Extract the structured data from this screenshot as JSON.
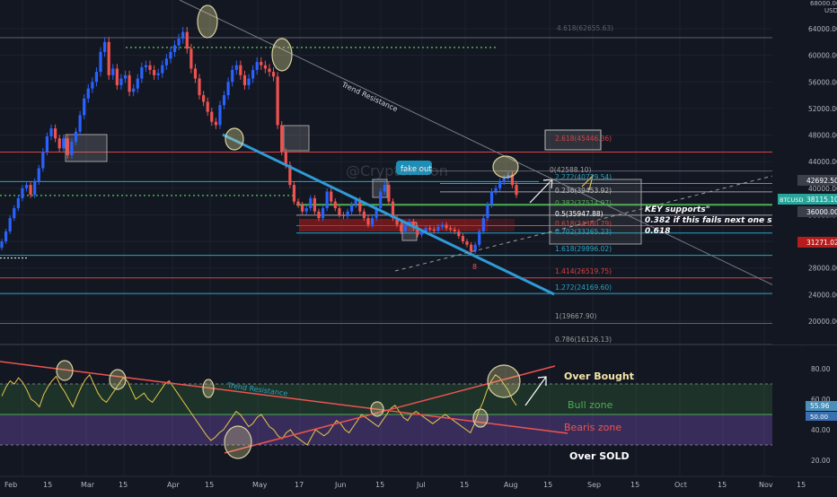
{
  "chart_data": [
    {
      "type": "candlestick",
      "instrument": "BTCUSD",
      "currency": "USD",
      "y_unit_label": "USD",
      "y_scale": "log",
      "ylim": [
        19000,
        68000
      ],
      "price_ticks": [
        64000,
        60000,
        56000,
        52000,
        48000,
        44000,
        40000,
        36000,
        32000,
        28000,
        24000,
        20000
      ],
      "price_tick_labels": [
        "64000.00",
        "60000.00",
        "56000.00",
        "52000.00",
        "48000.00",
        "44000.00",
        "40000.00",
        "36000.00",
        "32000.00",
        "28000.00",
        "24000.00",
        "20000.00"
      ],
      "top_axis_label": "68000.00",
      "price_tags": [
        {
          "value": "42692.50",
          "color": "#3a3f4b"
        },
        {
          "value": "38115.10",
          "label": "BTCUSD",
          "color": "#26a69a"
        },
        {
          "value": "36000.00",
          "color": "#3a3f4b"
        },
        {
          "value": "31271.02",
          "color": "#b71c1c"
        }
      ],
      "close_series": [
        32000,
        33500,
        35500,
        37000,
        38500,
        40000,
        40500,
        39000,
        41000,
        43000,
        45500,
        47800,
        49000,
        47500,
        46000,
        47500,
        45000,
        47000,
        48500,
        51000,
        53500,
        55000,
        56000,
        57500,
        60500,
        62000,
        57000,
        58000,
        55500,
        56500,
        57000,
        54500,
        55000,
        56500,
        58200,
        58500,
        57800,
        57000,
        57300,
        58500,
        59500,
        60500,
        61500,
        62500,
        63500,
        61000,
        58000,
        56500,
        54000,
        53000,
        51500,
        50000,
        49500,
        52500,
        54000,
        56000,
        57800,
        58500,
        57000,
        55500,
        56500,
        57800,
        59000,
        58500,
        58000,
        57500,
        56800,
        49500,
        45500,
        43500,
        40500,
        38000,
        37500,
        36500,
        37000,
        38500,
        36500,
        35500,
        37000,
        39500,
        38000,
        37000,
        36000,
        35800,
        36500,
        37500,
        38200,
        36500,
        35500,
        34500,
        35500,
        37000,
        39500,
        40500,
        38000,
        35500,
        34500,
        33500,
        34500,
        35000,
        34000,
        33000,
        33500,
        34000,
        33800,
        33600,
        34200,
        34500,
        34000,
        33800,
        33500,
        32800,
        32000,
        31500,
        30500,
        31500,
        33500,
        35500,
        37500,
        39500,
        40000,
        41000,
        41500,
        42000,
        40500,
        39000
      ],
      "fib_levels": [
        {
          "label": "0(42588.10)"
        },
        {
          "label": "0.236(39453.92)"
        },
        {
          "label": "0.382(37514.97)"
        },
        {
          "label": "0.5(35947.88)"
        },
        {
          "label": "0.618(34380.79)"
        },
        {
          "label": "0.702(33265.23)"
        },
        {
          "label": "1(29896.02)"
        },
        {
          "label": "1.272(24169.60)"
        },
        {
          "label": "1.414(26519.75)"
        },
        {
          "label": "1.618(29896.02)"
        },
        {
          "label": "2.272(40719.54)"
        },
        {
          "label": "2.618(45446.36)"
        },
        {
          "label": "1(19667.90)"
        },
        {
          "label": "0.786(16126.13)"
        },
        {
          "label": "4.618(62655.63)"
        }
      ],
      "annotations": {
        "fake_out": "fake out",
        "trend_resistance": "Trend Resistance",
        "key_supports": [
          "KEY supports\"",
          "0.382 if this fails next one should be",
          "0.618"
        ],
        "marker": "8",
        "watermark": "@CryptoMiron"
      },
      "time_labels": [
        "Feb",
        "15",
        "Mar",
        "15",
        "Apr",
        "15",
        "May",
        "17",
        "Jun",
        "15",
        "Jul",
        "15",
        "Aug",
        "15",
        "Sep",
        "15",
        "Oct",
        "15",
        "Nov",
        "15"
      ]
    },
    {
      "type": "line",
      "series_name": "RSI",
      "ylim": [
        20,
        100
      ],
      "y_ticks": [
        80,
        60,
        40,
        20
      ],
      "y_tick_labels": [
        "80.00",
        "60.00",
        "40.00",
        "20.00"
      ],
      "current_value": "55.96",
      "current_tag_color": "#4a90b8",
      "second_tag": "50.00",
      "zones": {
        "over_bought": "Over Bought",
        "bull_zone": "Bull zone",
        "bearish_zone": "Bearis zone",
        "over_sold": "Over SOLD",
        "trend_resistance": "Trend Resistance"
      },
      "levels": [
        70,
        50,
        30
      ],
      "values": [
        62,
        68,
        72,
        70,
        74,
        71,
        66,
        60,
        58,
        55,
        63,
        68,
        72,
        75,
        69,
        65,
        60,
        55,
        62,
        68,
        73,
        76,
        70,
        64,
        60,
        58,
        62,
        66,
        70,
        74,
        72,
        66,
        60,
        62,
        64,
        60,
        58,
        62,
        66,
        70,
        72,
        68,
        64,
        60,
        56,
        52,
        48,
        44,
        40,
        36,
        33,
        35,
        38,
        40,
        44,
        48,
        52,
        50,
        46,
        42,
        44,
        48,
        50,
        46,
        42,
        40,
        36,
        34,
        38,
        40,
        36,
        34,
        32,
        30,
        35,
        40,
        38,
        36,
        38,
        42,
        46,
        44,
        40,
        38,
        42,
        46,
        50,
        48,
        46,
        44,
        42,
        46,
        50,
        54,
        56,
        52,
        48,
        46,
        50,
        52,
        50,
        48,
        46,
        44,
        46,
        48,
        50,
        48,
        46,
        44,
        42,
        40,
        38,
        44,
        52,
        58,
        66,
        72,
        76,
        74,
        70,
        66,
        60,
        56
      ]
    }
  ]
}
